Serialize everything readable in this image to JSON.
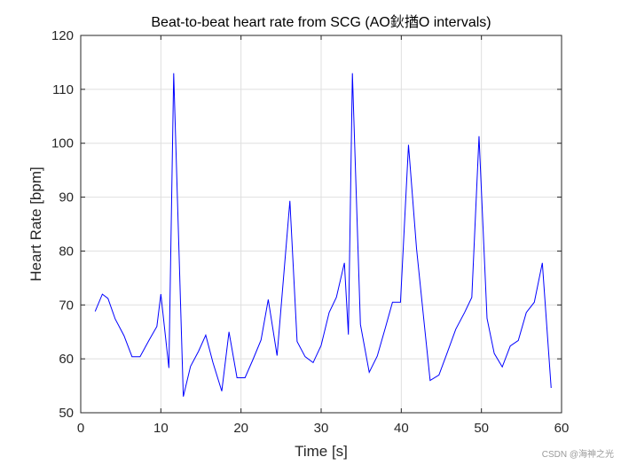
{
  "chart_data": {
    "type": "line",
    "title": "Beat-to-beat heart rate from SCG (AO鈥揂O intervals)",
    "xlabel": "Time [s]",
    "ylabel": "Heart Rate [bpm]",
    "xlim": [
      0,
      60
    ],
    "ylim": [
      50,
      120
    ],
    "xticks": [
      0,
      10,
      20,
      30,
      40,
      50,
      60
    ],
    "yticks": [
      50,
      60,
      70,
      80,
      90,
      100,
      110,
      120
    ],
    "grid": true,
    "line_color": "#0000ff",
    "series": [
      {
        "name": "Heart rate",
        "x": [
          1.8,
          2.7,
          3.4,
          4.3,
          5.4,
          6.4,
          7.4,
          8.5,
          9.5,
          10.0,
          11.0,
          11.6,
          12.8,
          13.7,
          14.7,
          15.6,
          16.5,
          17.6,
          18.5,
          19.5,
          20.5,
          21.5,
          22.5,
          23.4,
          24.5,
          26.1,
          27.0,
          28.0,
          29.0,
          30.0,
          31.0,
          31.9,
          32.9,
          33.4,
          33.9,
          34.9,
          36.0,
          37.0,
          38.0,
          38.9,
          39.9,
          40.9,
          41.9,
          42.9,
          43.6,
          44.7,
          45.7,
          46.8,
          47.9,
          48.8,
          49.7,
          50.7,
          51.6,
          52.6,
          53.6,
          54.6,
          55.6,
          56.6,
          57.6,
          58.7
        ],
        "y": [
          68.8,
          72.0,
          71.2,
          67.4,
          64.3,
          60.4,
          60.4,
          63.4,
          66.0,
          72.0,
          58.3,
          113.0,
          53.0,
          58.6,
          61.4,
          64.4,
          59.3,
          54.0,
          65.0,
          56.5,
          56.5,
          59.9,
          63.5,
          71.0,
          60.6,
          89.3,
          63.2,
          60.4,
          59.3,
          62.5,
          68.6,
          71.4,
          77.8,
          64.5,
          113.0,
          66.4,
          57.5,
          60.5,
          65.7,
          70.5,
          70.5,
          99.7,
          80.5,
          66.0,
          56.0,
          57.0,
          61.0,
          65.5,
          68.6,
          71.4,
          101.3,
          67.5,
          61.0,
          58.5,
          62.4,
          63.4,
          68.6,
          70.5,
          77.8,
          54.6
        ]
      }
    ]
  },
  "watermark": "CSDN @海神之光"
}
